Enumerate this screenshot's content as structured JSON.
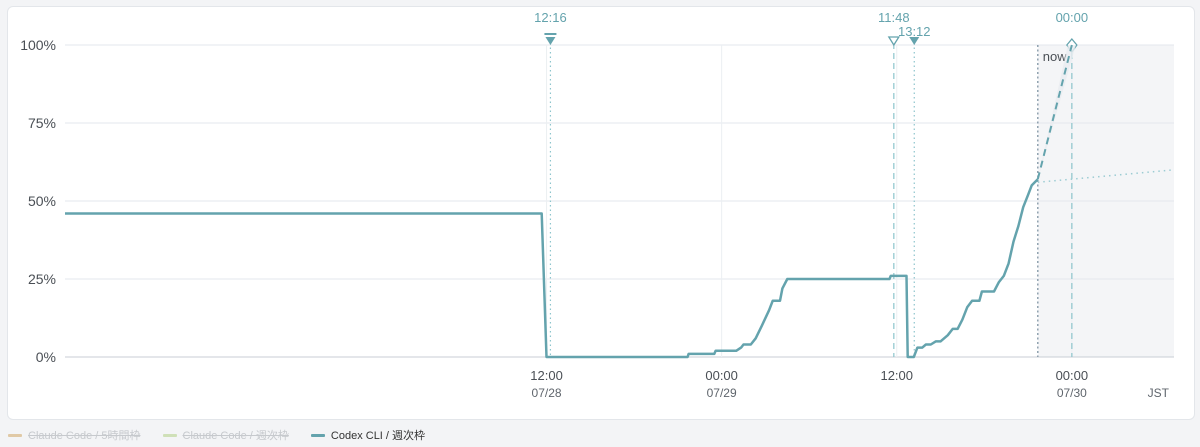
{
  "chart_data": {
    "type": "line",
    "yticks": [
      "0%",
      "25%",
      "50%",
      "75%",
      "100%"
    ],
    "ylim": [
      0,
      100
    ],
    "xaxis": {
      "start": "2025-07-27T03:00",
      "end": "2025-07-30T07:00",
      "ticks": [
        {
          "at": "2025-07-28T12:00",
          "time": "12:00",
          "date": "07/28"
        },
        {
          "at": "2025-07-29T00:00",
          "time": "00:00",
          "date": "07/29"
        },
        {
          "at": "2025-07-29T12:00",
          "time": "12:00",
          "date": ""
        },
        {
          "at": "2025-07-30T00:00",
          "time": "00:00",
          "date": "07/30"
        }
      ],
      "timezone": "JST"
    },
    "now": {
      "at": "2025-07-29T21:40",
      "label": "now"
    },
    "reset_markers": [
      {
        "at": "2025-07-28T12:16",
        "label": "12:16",
        "style": "filled",
        "line": "dotted"
      },
      {
        "at": "2025-07-29T11:48",
        "label": "11:48",
        "style": "hollow",
        "line": "dashed"
      },
      {
        "at": "2025-07-29T13:12",
        "label": "13:12",
        "style": "filled",
        "line": "dotted"
      },
      {
        "at": "2025-07-30T00:00",
        "label": "00:00",
        "style": "diamond",
        "line": "dashed"
      }
    ],
    "grid": true,
    "legend_position": "bottom-left",
    "series": [
      {
        "name": "Claude Code / 5時間枠",
        "color": "#e0c9a6",
        "visible": false,
        "points": []
      },
      {
        "name": "Claude Code / 週次枠",
        "color": "#cfe0b8",
        "visible": false,
        "points": []
      },
      {
        "name": "Codex CLI / 週次枠",
        "color": "#64a3ad",
        "visible": true,
        "points": [
          [
            "2025-07-27T03:00",
            46
          ],
          [
            "2025-07-28T11:40",
            46
          ],
          [
            "2025-07-28T12:00",
            0
          ],
          [
            "2025-07-28T21:40",
            0
          ],
          [
            "2025-07-28T21:44",
            1
          ],
          [
            "2025-07-28T23:30",
            1
          ],
          [
            "2025-07-28T23:35",
            2
          ],
          [
            "2025-07-29T01:00",
            2
          ],
          [
            "2025-07-29T01:20",
            3
          ],
          [
            "2025-07-29T01:30",
            4
          ],
          [
            "2025-07-29T02:00",
            4
          ],
          [
            "2025-07-29T02:20",
            6
          ],
          [
            "2025-07-29T02:45",
            10
          ],
          [
            "2025-07-29T03:15",
            15
          ],
          [
            "2025-07-29T03:30",
            18
          ],
          [
            "2025-07-29T04:00",
            18
          ],
          [
            "2025-07-29T04:10",
            22
          ],
          [
            "2025-07-29T04:30",
            25
          ],
          [
            "2025-07-29T11:30",
            25
          ],
          [
            "2025-07-29T11:35",
            26
          ],
          [
            "2025-07-29T12:40",
            26
          ],
          [
            "2025-07-29T12:45",
            0
          ],
          [
            "2025-07-29T13:10",
            0
          ],
          [
            "2025-07-29T13:25",
            3
          ],
          [
            "2025-07-29T13:45",
            3
          ],
          [
            "2025-07-29T14:00",
            4
          ],
          [
            "2025-07-29T14:20",
            4
          ],
          [
            "2025-07-29T14:40",
            5
          ],
          [
            "2025-07-29T15:00",
            5
          ],
          [
            "2025-07-29T15:30",
            7
          ],
          [
            "2025-07-29T15:50",
            9
          ],
          [
            "2025-07-29T16:10",
            9
          ],
          [
            "2025-07-29T16:30",
            12
          ],
          [
            "2025-07-29T16:50",
            16
          ],
          [
            "2025-07-29T17:10",
            18
          ],
          [
            "2025-07-29T17:40",
            18
          ],
          [
            "2025-07-29T17:50",
            21
          ],
          [
            "2025-07-29T18:40",
            21
          ],
          [
            "2025-07-29T19:00",
            24
          ],
          [
            "2025-07-29T19:20",
            26
          ],
          [
            "2025-07-29T19:40",
            30
          ],
          [
            "2025-07-29T20:00",
            37
          ],
          [
            "2025-07-29T20:20",
            42
          ],
          [
            "2025-07-29T20:40",
            48
          ],
          [
            "2025-07-29T21:00",
            52
          ],
          [
            "2025-07-29T21:15",
            55
          ],
          [
            "2025-07-29T21:40",
            57
          ]
        ],
        "projection": [
          [
            "2025-07-29T21:40",
            57
          ],
          [
            "2025-07-30T00:00",
            100
          ]
        ],
        "trend": [
          [
            "2025-07-29T21:40",
            56
          ],
          [
            "2025-07-30T07:00",
            60
          ]
        ]
      }
    ]
  }
}
